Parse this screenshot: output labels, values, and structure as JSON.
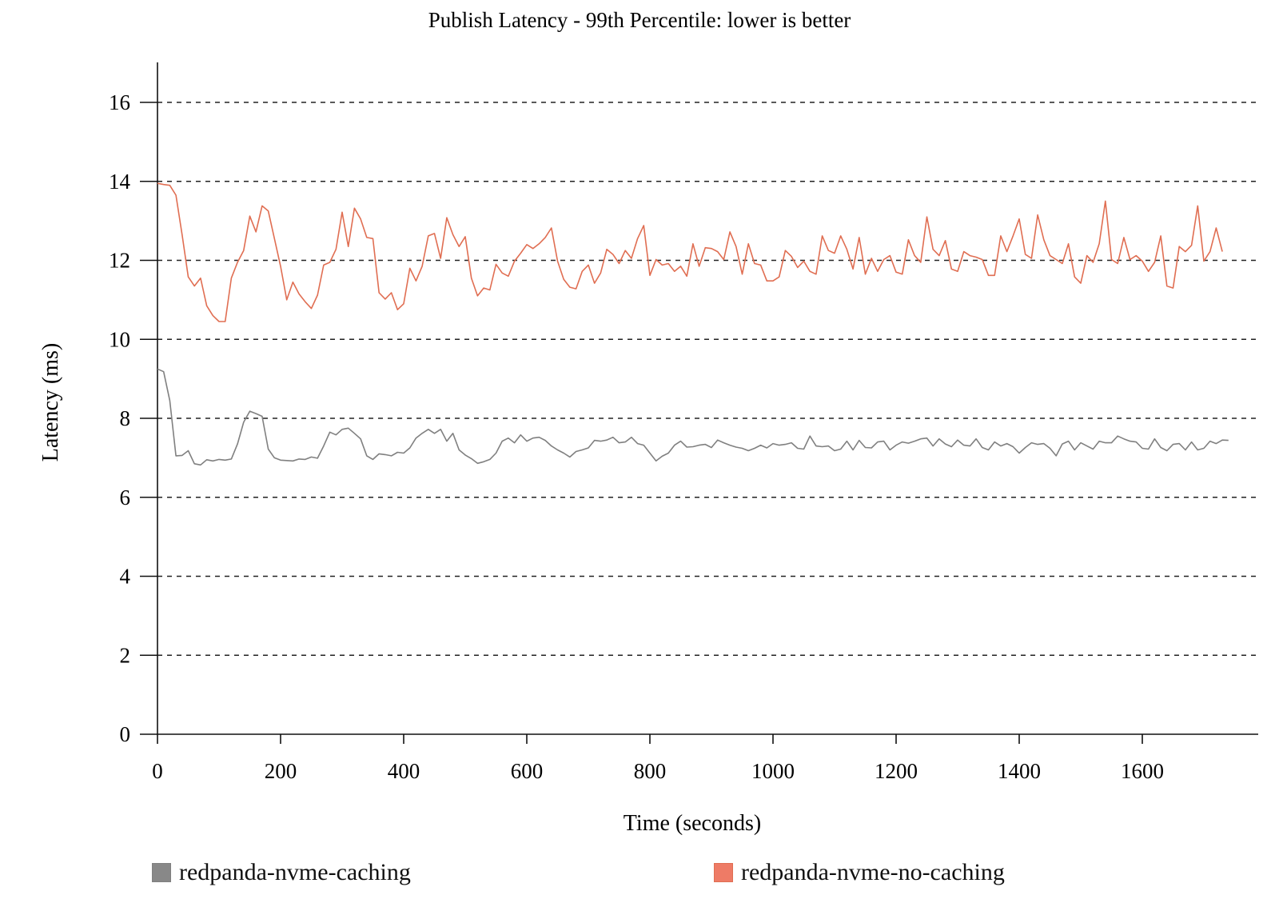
{
  "chart_data": {
    "type": "line",
    "title": "Publish Latency - 99th Percentile: lower is better",
    "xlabel": "Time (seconds)",
    "ylabel": "Latency (ms)",
    "xlim": [
      0,
      1760
    ],
    "ylim": [
      0,
      17
    ],
    "xticks": [
      0,
      200,
      400,
      600,
      800,
      1000,
      1200,
      1400,
      1600
    ],
    "yticks": [
      0,
      2,
      4,
      6,
      8,
      10,
      12,
      14,
      16
    ],
    "grid": "horizontal-dashed",
    "legend_position": "bottom",
    "x_step": 10,
    "series": [
      {
        "name": "redpanda-nvme-caching",
        "color": "#808080",
        "fill_color": "#888888",
        "values": [
          9.25,
          9.18,
          8.45,
          7.05,
          7.06,
          7.18,
          6.85,
          6.82,
          6.95,
          6.92,
          6.96,
          6.94,
          6.97,
          7.35,
          7.9,
          8.18,
          8.12,
          8.05,
          7.22,
          7.0,
          6.94,
          6.93,
          6.92,
          6.97,
          6.96,
          7.02,
          6.99,
          7.3,
          7.65,
          7.58,
          7.72,
          7.75,
          7.62,
          7.48,
          7.05,
          6.96,
          7.1,
          7.08,
          7.05,
          7.14,
          7.12,
          7.25,
          7.5,
          7.62,
          7.72,
          7.62,
          7.72,
          7.42,
          7.62,
          7.2,
          7.07,
          6.98,
          6.86,
          6.9,
          6.96,
          7.12,
          7.42,
          7.5,
          7.38,
          7.58,
          7.42,
          7.5,
          7.52,
          7.44,
          7.3,
          7.2,
          7.12,
          7.02,
          7.16,
          7.2,
          7.25,
          7.44,
          7.42,
          7.45,
          7.52,
          7.38,
          7.4,
          7.52,
          7.36,
          7.32,
          7.12,
          6.92,
          7.04,
          7.12,
          7.32,
          7.42,
          7.27,
          7.28,
          7.32,
          7.34,
          7.26,
          7.45,
          7.38,
          7.32,
          7.27,
          7.24,
          7.18,
          7.24,
          7.32,
          7.25,
          7.36,
          7.32,
          7.34,
          7.38,
          7.24,
          7.22,
          7.55,
          7.3,
          7.28,
          7.3,
          7.18,
          7.22,
          7.42,
          7.2,
          7.44,
          7.26,
          7.25,
          7.4,
          7.42,
          7.2,
          7.32,
          7.4,
          7.37,
          7.42,
          7.48,
          7.5,
          7.3,
          7.48,
          7.35,
          7.28,
          7.45,
          7.32,
          7.3,
          7.48,
          7.26,
          7.2,
          7.4,
          7.3,
          7.36,
          7.28,
          7.12,
          7.26,
          7.38,
          7.34,
          7.36,
          7.24,
          7.05,
          7.35,
          7.42,
          7.2,
          7.38,
          7.3,
          7.22,
          7.42,
          7.38,
          7.38,
          7.55,
          7.48,
          7.42,
          7.4,
          7.24,
          7.22,
          7.48,
          7.26,
          7.18,
          7.34,
          7.36,
          7.2,
          7.4,
          7.2,
          7.24,
          7.42,
          7.36,
          7.45,
          7.44
        ]
      },
      {
        "name": "redpanda-nvme-no-caching",
        "color": "#e06e52",
        "fill_color": "#ee7b66",
        "values": [
          13.95,
          13.92,
          13.9,
          13.65,
          12.65,
          11.58,
          11.35,
          11.55,
          10.85,
          10.6,
          10.45,
          10.45,
          11.55,
          11.95,
          12.25,
          13.12,
          12.72,
          13.38,
          13.25,
          12.55,
          11.85,
          11.0,
          11.45,
          11.15,
          10.95,
          10.78,
          11.12,
          11.88,
          11.95,
          12.28,
          13.22,
          12.35,
          13.32,
          13.05,
          12.58,
          12.55,
          11.18,
          11.02,
          11.18,
          10.75,
          10.9,
          11.8,
          11.48,
          11.85,
          12.62,
          12.68,
          12.05,
          13.08,
          12.65,
          12.35,
          12.6,
          11.55,
          11.1,
          11.3,
          11.25,
          11.9,
          11.68,
          11.6,
          11.98,
          12.18,
          12.4,
          12.3,
          12.42,
          12.58,
          12.82,
          11.98,
          11.52,
          11.32,
          11.28,
          11.72,
          11.88,
          11.42,
          11.68,
          12.28,
          12.15,
          11.92,
          12.25,
          12.05,
          12.55,
          12.88,
          11.62,
          12.02,
          11.88,
          11.92,
          11.72,
          11.85,
          11.6,
          12.42,
          11.85,
          12.32,
          12.3,
          12.22,
          12.02,
          12.72,
          12.35,
          11.65,
          12.42,
          11.92,
          11.88,
          11.48,
          11.48,
          11.58,
          12.25,
          12.1,
          11.82,
          11.98,
          11.72,
          11.65,
          12.62,
          12.25,
          12.18,
          12.62,
          12.28,
          11.78,
          12.58,
          11.65,
          12.05,
          11.72,
          12.02,
          12.12,
          11.7,
          11.65,
          12.52,
          12.12,
          11.95,
          13.1,
          12.28,
          12.12,
          12.5,
          11.78,
          11.72,
          12.22,
          12.12,
          12.08,
          12.02,
          11.62,
          11.62,
          12.62,
          12.22,
          12.62,
          13.05,
          12.15,
          12.05,
          13.15,
          12.52,
          12.12,
          12.02,
          11.92,
          12.42,
          11.58,
          11.42,
          12.12,
          11.95,
          12.42,
          13.5,
          12.02,
          11.92,
          12.58,
          12.02,
          12.12,
          11.98,
          11.72,
          11.95,
          12.62,
          11.35,
          11.3,
          12.35,
          12.22,
          12.38,
          13.38,
          11.98,
          12.22,
          12.82,
          12.22
        ]
      }
    ]
  }
}
